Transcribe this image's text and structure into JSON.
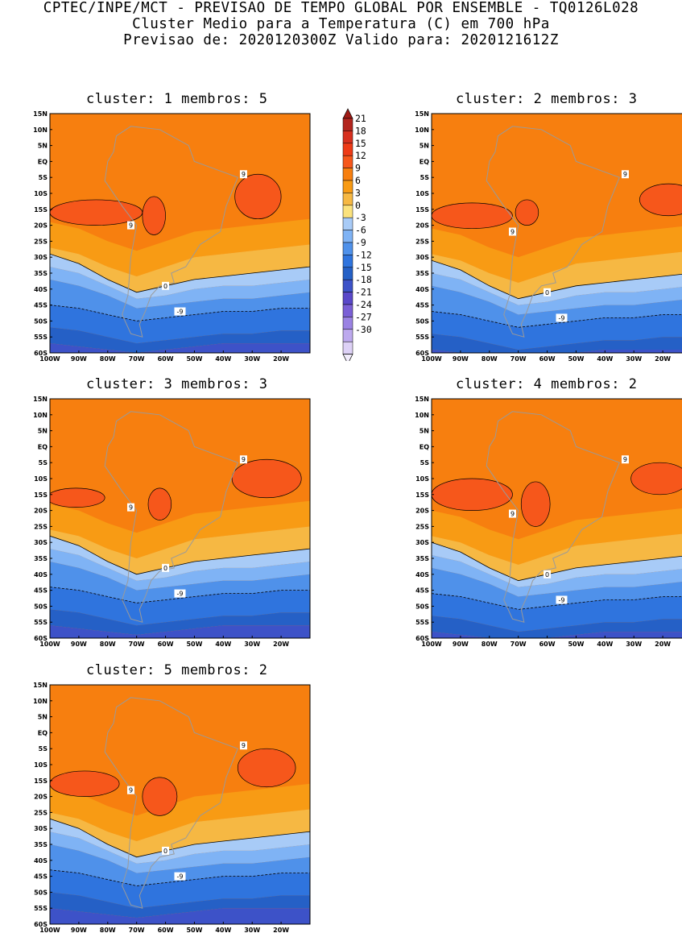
{
  "header": {
    "line1": "CPTEC/INPE/MCT - PREVISAO DE TEMPO GLOBAL POR ENSEMBLE - TQ0126L028",
    "line2": "Cluster Medio para a Temperatura (C) em 700 hPa",
    "line3": "Previsao de: 2020120300Z   Valido para: 2020121612Z"
  },
  "axis_labels": {
    "lat": [
      "15N",
      "10N",
      "5N",
      "EQ",
      "5S",
      "10S",
      "15S",
      "20S",
      "25S",
      "30S",
      "35S",
      "40S",
      "45S",
      "50S",
      "55S",
      "60S"
    ],
    "lon": [
      "100W",
      "90W",
      "80W",
      "70W",
      "60W",
      "50W",
      "40W",
      "30W",
      "20W"
    ]
  },
  "colorbar": {
    "labels": [
      "21",
      "18",
      "15",
      "12",
      "9",
      "6",
      "3",
      "0",
      "-3",
      "-6",
      "-9",
      "-12",
      "-15",
      "-18",
      "-21",
      "-24",
      "-27",
      "-30"
    ],
    "colors": [
      "#b3261e",
      "#d7301f",
      "#ee3b17",
      "#f6571b",
      "#f77f0f",
      "#f89b14",
      "#f6b843",
      "#fbe27d",
      "#a8cbf7",
      "#7fb3f5",
      "#4f91ea",
      "#2f74de",
      "#2560c6",
      "#3d52c8",
      "#5a48c9",
      "#7a5fd6",
      "#9a82e3",
      "#bda9ee",
      "#ddd1f6"
    ],
    "top_color": "#a01b15",
    "bottom_color": "#f1ecfb"
  },
  "panels": [
    {
      "title": "cluster: 1   membros: 5"
    },
    {
      "title": "cluster: 2   membros: 3"
    },
    {
      "title": "cluster: 3   membros: 3"
    },
    {
      "title": "cluster: 4   membros: 2"
    },
    {
      "title": "cluster: 5   membros: 2"
    }
  ],
  "contour_labels": {
    "c9": "9",
    "c0": "0",
    "cm9": "-9"
  }
}
